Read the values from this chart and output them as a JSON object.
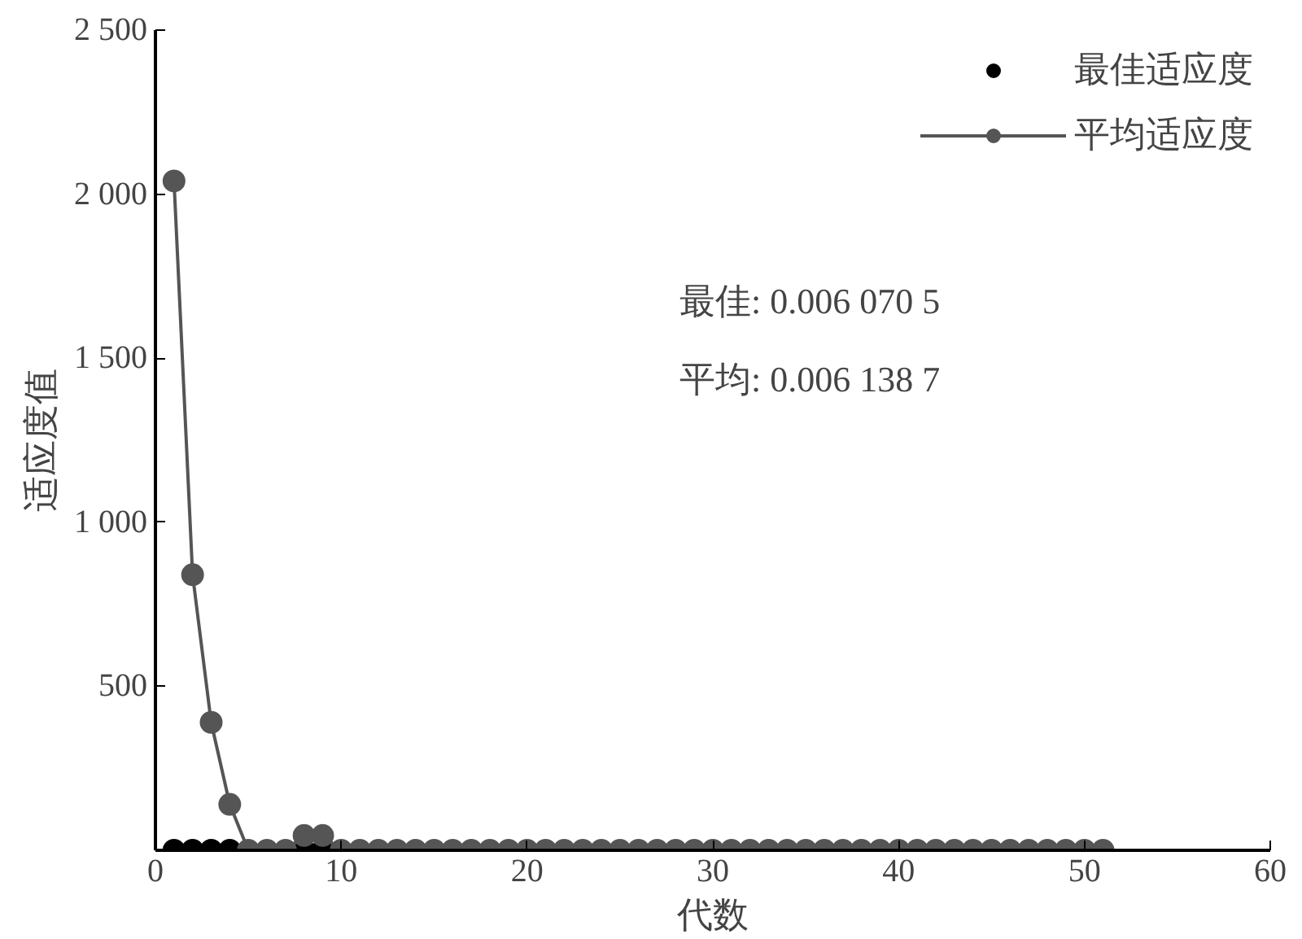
{
  "chart_data": {
    "type": "scatter",
    "xlabel": "代数",
    "ylabel": "适应度值",
    "x": [
      1,
      2,
      3,
      4,
      5,
      6,
      7,
      8,
      9,
      10,
      11,
      12,
      13,
      14,
      15,
      16,
      17,
      18,
      19,
      20,
      21,
      22,
      23,
      24,
      25,
      26,
      27,
      28,
      29,
      30,
      31,
      32,
      33,
      34,
      35,
      36,
      37,
      38,
      39,
      40,
      41,
      42,
      43,
      44,
      45,
      46,
      47,
      48,
      49,
      50,
      51
    ],
    "series": [
      {
        "name": "最佳适应度",
        "color": "#000000",
        "values": [
          0,
          0,
          0,
          0,
          null,
          null,
          null,
          0,
          0,
          null,
          null,
          null,
          null,
          null,
          null,
          null,
          null,
          null,
          null,
          null,
          null,
          null,
          null,
          null,
          null,
          null,
          null,
          null,
          null,
          null,
          null,
          null,
          null,
          null,
          null,
          null,
          null,
          null,
          null,
          null,
          null,
          null,
          null,
          null,
          null,
          null,
          null,
          null,
          null,
          null,
          null
        ]
      },
      {
        "name": "平均适应度",
        "color": "#555555",
        "type": "line",
        "values": [
          2040,
          840,
          390,
          140,
          0,
          0,
          0,
          45,
          45,
          0,
          0,
          0,
          0,
          0,
          0,
          0,
          0,
          0,
          0,
          0,
          0,
          0,
          0,
          0,
          0,
          0,
          0,
          0,
          0,
          0,
          0,
          0,
          0,
          0,
          0,
          0,
          0,
          0,
          0,
          0,
          0,
          0,
          0,
          0,
          0,
          0,
          0,
          0,
          0,
          0,
          0
        ]
      }
    ],
    "annotations": [
      {
        "text": "最佳: 0.006 070 5"
      },
      {
        "text": "平均: 0.006 138 7"
      }
    ],
    "xlim": [
      0,
      60
    ],
    "xticks": [
      0,
      10,
      20,
      30,
      40,
      50,
      60
    ],
    "ylim": [
      0,
      2500
    ],
    "yticks": [
      {
        "value": 500,
        "label": "500"
      },
      {
        "value": 1000,
        "label": "1 000"
      },
      {
        "value": 1500,
        "label": "1 500"
      },
      {
        "value": 2000,
        "label": "2 000"
      },
      {
        "value": 2500,
        "label": "2 500"
      }
    ],
    "marker": "circle",
    "legend": "top right",
    "grid": false
  }
}
